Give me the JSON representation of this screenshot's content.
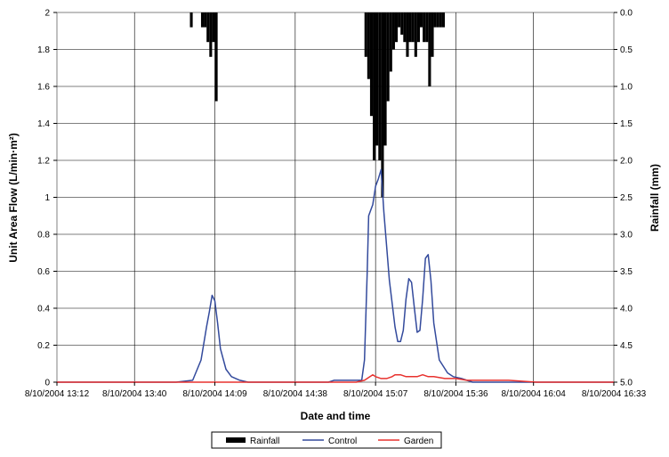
{
  "chart_data": {
    "type": "line",
    "xlabel": "Date and time",
    "ylabel": "Unit Area Flow (L/min·m²)",
    "ylabel_right": "Rainfall (mm)",
    "ylim": [
      0,
      2
    ],
    "ylim_right": [
      0,
      5
    ],
    "y2_inverted": true,
    "grid": true,
    "legend_position": "bottom",
    "x_ticks": [
      "8/10/2004 13:12",
      "8/10/2004 13:40",
      "8/10/2004 14:09",
      "8/10/2004 14:38",
      "8/10/2004 15:07",
      "8/10/2004 15:36",
      "8/10/2004 16:04",
      "8/10/2004 16:33"
    ],
    "y_ticks": [
      "0",
      "0.2",
      "0.4",
      "0.6",
      "0.8",
      "1",
      "1.2",
      "1.4",
      "1.6",
      "1.8",
      "2"
    ],
    "y2_ticks": [
      "0.0",
      "0.5",
      "1.0",
      "1.5",
      "2.0",
      "2.5",
      "3.0",
      "3.5",
      "4.0",
      "4.5",
      "5.0"
    ],
    "x_start": "8/10/2004 13:12",
    "x_end": "8/10/2004 16:33",
    "series": [
      {
        "name": "Control",
        "color": "#334a9c",
        "x": [
          "13:12",
          "13:50",
          "13:55",
          "14:01",
          "14:04",
          "14:06",
          "14:07",
          "14:08",
          "14:09",
          "14:10",
          "14:11",
          "14:13",
          "14:15",
          "14:18",
          "14:21",
          "14:27",
          "14:50",
          "14:52",
          "14:57",
          "15:02",
          "15:03",
          "15:04",
          "15:04:30",
          "15:05",
          "15:06",
          "15:07",
          "15:08",
          "15:09",
          "15:10",
          "15:12",
          "15:14",
          "15:15",
          "15:16",
          "15:17",
          "15:18",
          "15:19",
          "15:20",
          "15:21",
          "15:22",
          "15:23",
          "15:24",
          "15:25",
          "15:26",
          "15:27",
          "15:28",
          "15:30",
          "15:33",
          "15:35",
          "15:38",
          "15:42",
          "16:33"
        ],
        "y": [
          0,
          0,
          0,
          0.01,
          0.12,
          0.3,
          0.38,
          0.47,
          0.44,
          0.32,
          0.18,
          0.07,
          0.03,
          0.01,
          0,
          0,
          0,
          0.01,
          0.01,
          0.01,
          0.12,
          0.6,
          0.9,
          0.92,
          0.96,
          1.06,
          1.1,
          1.15,
          0.92,
          0.55,
          0.3,
          0.22,
          0.22,
          0.28,
          0.45,
          0.56,
          0.54,
          0.4,
          0.27,
          0.28,
          0.45,
          0.67,
          0.69,
          0.55,
          0.32,
          0.12,
          0.05,
          0.03,
          0.02,
          0,
          0
        ]
      },
      {
        "name": "Garden",
        "color": "#e8322e",
        "x": [
          "13:12",
          "15:00",
          "15:03",
          "15:05",
          "15:06",
          "15:07",
          "15:09",
          "15:11",
          "15:13",
          "15:14",
          "15:16",
          "15:18",
          "15:20",
          "15:22",
          "15:24",
          "15:26",
          "15:28",
          "15:32",
          "15:36",
          "15:40",
          "15:45",
          "15:55",
          "16:05",
          "16:33"
        ],
        "y": [
          0,
          0,
          0.01,
          0.03,
          0.04,
          0.03,
          0.02,
          0.02,
          0.03,
          0.04,
          0.04,
          0.03,
          0.03,
          0.03,
          0.04,
          0.03,
          0.03,
          0.02,
          0.02,
          0.01,
          0.01,
          0.01,
          0,
          0
        ]
      },
      {
        "name": "Rainfall",
        "color": "#000000",
        "axis": "right",
        "kind": "bar",
        "x": [
          "14:00",
          "14:04",
          "14:05",
          "14:06",
          "14:07",
          "14:08",
          "14:09",
          "15:03",
          "15:04",
          "15:05",
          "15:06",
          "15:07",
          "15:08",
          "15:09",
          "15:10",
          "15:11",
          "15:12",
          "15:13",
          "15:14",
          "15:15",
          "15:16",
          "15:17",
          "15:18",
          "15:19",
          "15:20",
          "15:21",
          "15:22",
          "15:23",
          "15:24",
          "15:25",
          "15:26",
          "15:27",
          "15:28",
          "15:29",
          "15:30",
          "15:31"
        ],
        "y": [
          0.2,
          0.2,
          0.2,
          0.4,
          0.6,
          0.4,
          1.2,
          0.6,
          0.9,
          1.4,
          2.0,
          1.8,
          2.0,
          2.5,
          1.8,
          1.2,
          0.8,
          0.5,
          0.4,
          0.2,
          0.3,
          0.4,
          0.6,
          0.4,
          0.4,
          0.6,
          0.4,
          0.2,
          0.4,
          0.4,
          1.0,
          0.6,
          0.2,
          0.2,
          0.2,
          0.2
        ]
      }
    ],
    "legend": [
      "Rainfall",
      "Control",
      "Garden"
    ]
  }
}
